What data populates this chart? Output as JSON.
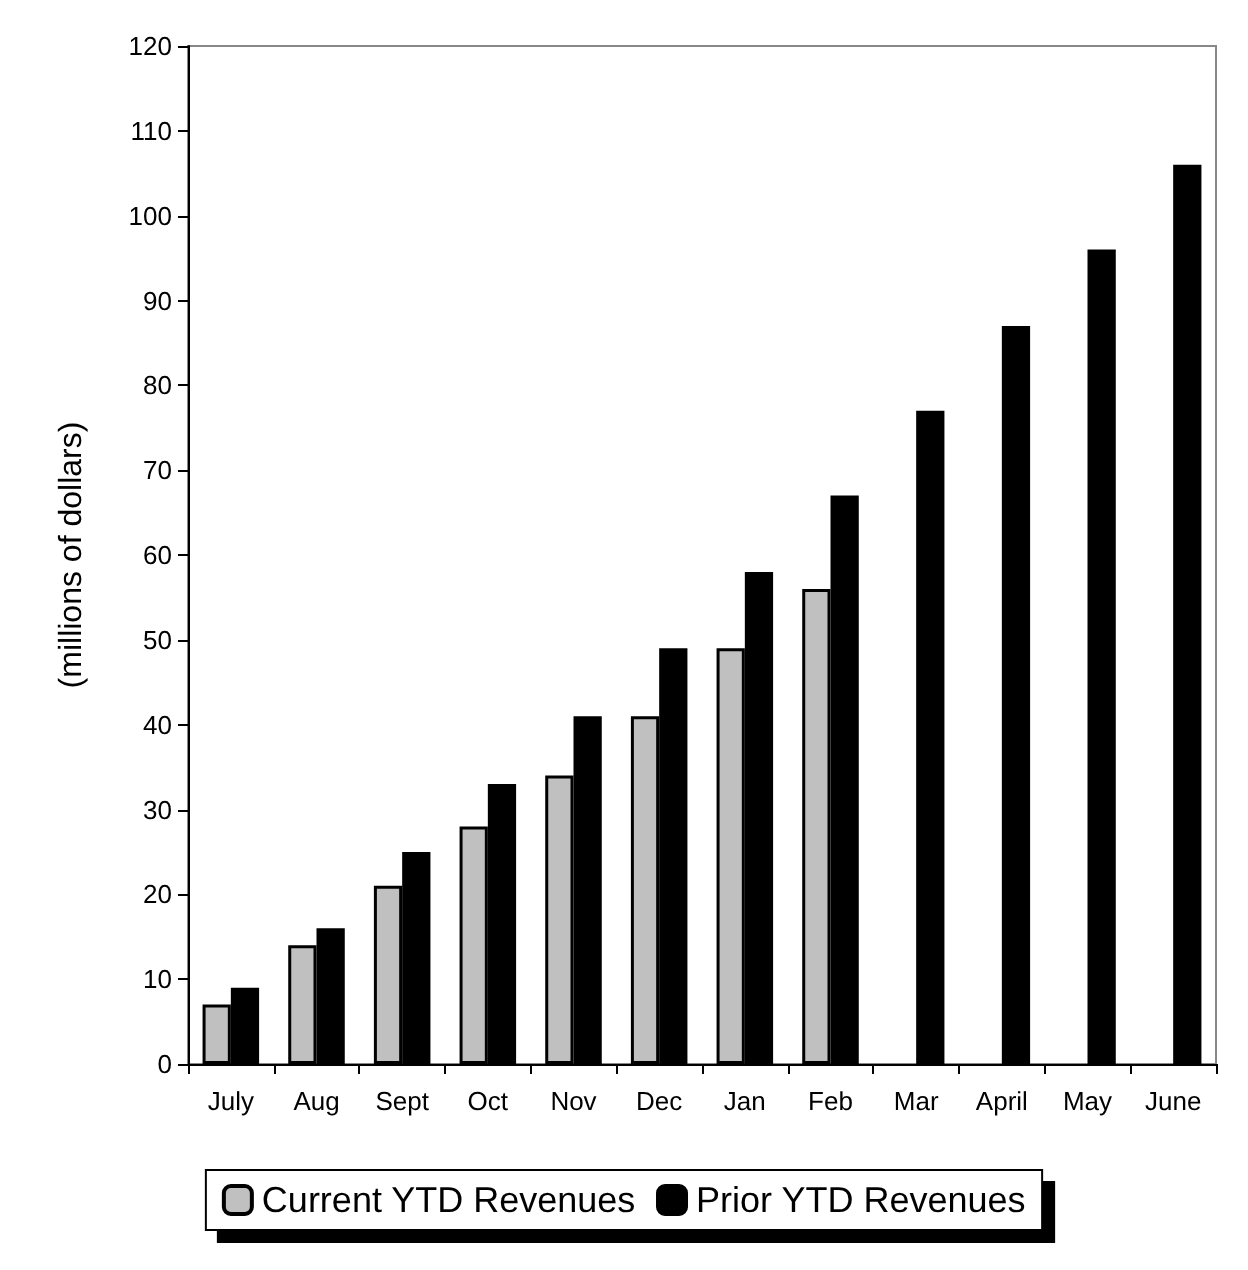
{
  "chart_data": {
    "type": "bar",
    "ylabel": "(millions of dollars)",
    "categories": [
      "July",
      "Aug",
      "Sept",
      "Oct",
      "Nov",
      "Dec",
      "Jan",
      "Feb",
      "Mar",
      "April",
      "May",
      "June"
    ],
    "series": [
      {
        "name": "Current YTD Revenues",
        "color": "#c0c0c0",
        "values": [
          7,
          14,
          21,
          28,
          34,
          41,
          49,
          56,
          null,
          null,
          null,
          null
        ]
      },
      {
        "name": "Prior YTD Revenues",
        "color": "#000000",
        "values": [
          9,
          16,
          25,
          33,
          41,
          49,
          58,
          67,
          77,
          87,
          96,
          106
        ]
      }
    ],
    "ylim": [
      0,
      120
    ],
    "yticks": [
      0,
      10,
      20,
      30,
      40,
      50,
      60,
      70,
      80,
      90,
      100,
      110,
      120
    ],
    "grid": false,
    "legend": "bottom"
  }
}
